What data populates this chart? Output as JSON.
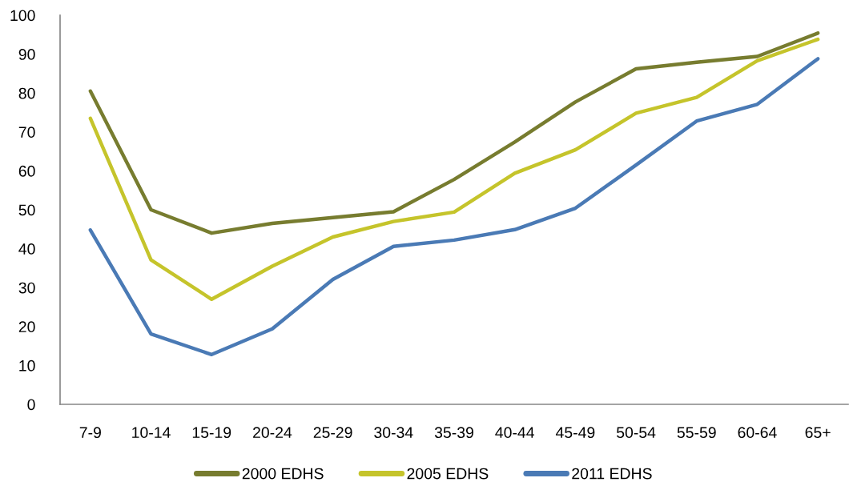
{
  "chart_data": {
    "type": "line",
    "categories": [
      "7-9",
      "10-14",
      "15-19",
      "20-24",
      "25-29",
      "30-34",
      "35-39",
      "40-44",
      "45-49",
      "50-54",
      "55-59",
      "60-64",
      "65+"
    ],
    "series": [
      {
        "name": "2000 EDHS",
        "color": "#777c2f",
        "values": [
          80.5,
          50.0,
          44.0,
          46.5,
          48.0,
          49.5,
          57.8,
          67.4,
          77.7,
          86.2,
          87.9,
          89.4,
          95.4
        ]
      },
      {
        "name": "2005 EDHS",
        "color": "#c5c42b",
        "values": [
          73.5,
          37.1,
          27.0,
          35.5,
          43.0,
          47.0,
          49.4,
          59.4,
          65.4,
          74.8,
          78.9,
          88.3,
          93.8
        ]
      },
      {
        "name": "2011 EDHS",
        "color": "#4a7ab5",
        "values": [
          44.8,
          18.1,
          12.8,
          19.4,
          32.1,
          40.6,
          42.2,
          44.9,
          50.4,
          61.5,
          72.8,
          77.1,
          88.8
        ]
      }
    ],
    "ylim": [
      0,
      100
    ],
    "yticks": [
      0,
      10,
      20,
      30,
      40,
      50,
      60,
      70,
      80,
      90,
      100
    ],
    "grid": false,
    "legend": "bottom",
    "marker": "none",
    "line_style": "solid"
  }
}
